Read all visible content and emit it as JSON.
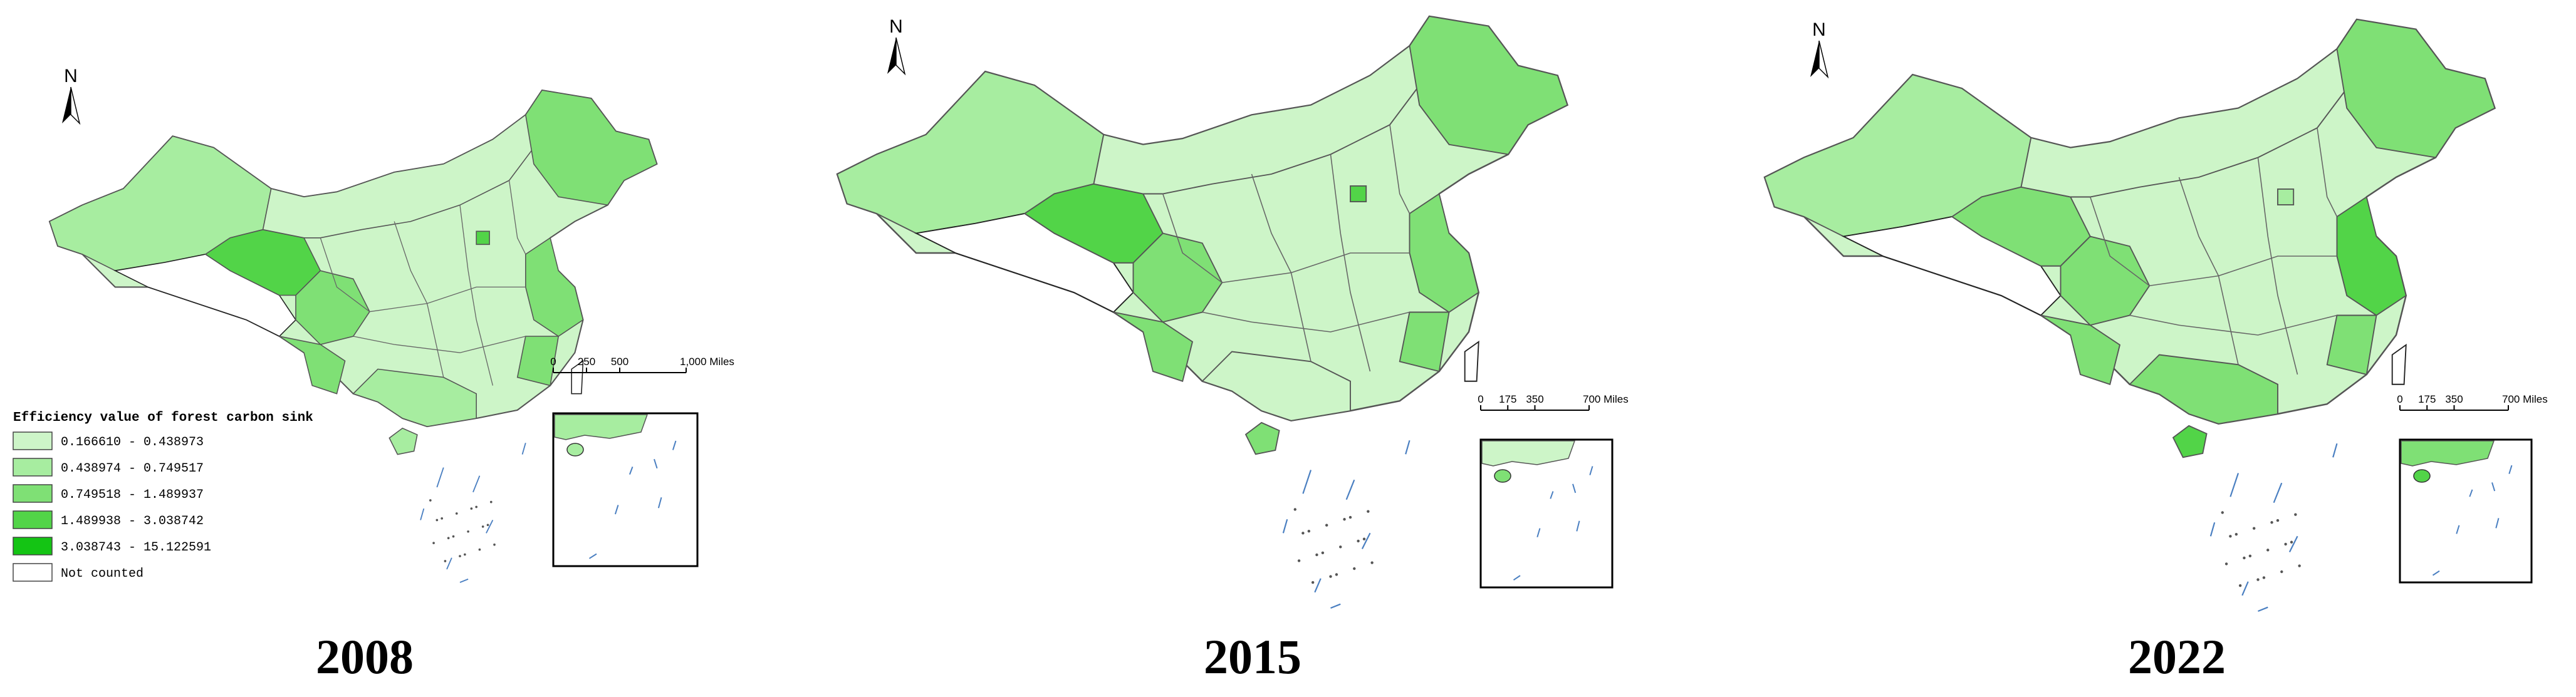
{
  "maps": [
    {
      "year": "2008",
      "scale_labels": [
        "0",
        "250",
        "500",
        "1,000 Miles"
      ]
    },
    {
      "year": "2015",
      "scale_labels": [
        "0",
        "175",
        "350",
        "700 Miles"
      ]
    },
    {
      "year": "2022",
      "scale_labels": [
        "0",
        "175",
        "350",
        "700 Miles"
      ]
    }
  ],
  "north": "N",
  "legend": {
    "title": "Efficiency value of forest carbon sink",
    "items": [
      {
        "label": "0.166610 - 0.438973",
        "color": "#cdf5c8"
      },
      {
        "label": "0.438974 - 0.749517",
        "color": "#a7eda0"
      },
      {
        "label": "0.749518 - 1.489937",
        "color": "#7fe075"
      },
      {
        "label": "1.489938 - 3.038742",
        "color": "#52d448"
      },
      {
        "label": "3.038743 - 15.122591",
        "color": "#14c414"
      },
      {
        "label": "Not counted",
        "color": "#ffffff"
      }
    ]
  }
}
